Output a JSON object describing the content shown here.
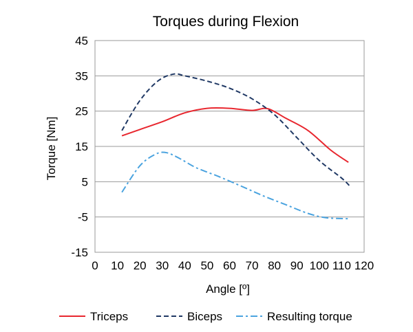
{
  "chart_data": {
    "type": "line",
    "title": "Torques during Flexion",
    "xlabel": "Angle [º]",
    "ylabel": "Torque [Nm]",
    "xlim": [
      0,
      120
    ],
    "ylim": [
      -15,
      45
    ],
    "x_ticks": [
      0,
      10,
      20,
      30,
      40,
      50,
      60,
      70,
      80,
      90,
      100,
      110,
      120
    ],
    "y_ticks": [
      45,
      35,
      25,
      15,
      5,
      -5,
      -15
    ],
    "grid": "horizontal",
    "legend_position": "bottom",
    "series": [
      {
        "name": "Triceps",
        "color": "#e8262e",
        "dash": "solid",
        "points": [
          [
            12,
            18
          ],
          [
            20,
            19.8
          ],
          [
            30,
            22
          ],
          [
            40,
            24.5
          ],
          [
            50,
            25.8
          ],
          [
            60,
            25.8
          ],
          [
            70,
            25.2
          ],
          [
            77,
            25.7
          ],
          [
            85,
            23
          ],
          [
            95,
            19.5
          ],
          [
            105,
            14
          ],
          [
            113,
            10.5
          ]
        ]
      },
      {
        "name": "Biceps",
        "color": "#1f3864",
        "dash": "dashed",
        "points": [
          [
            12,
            19.5
          ],
          [
            20,
            28
          ],
          [
            28,
            33.5
          ],
          [
            35,
            35.5
          ],
          [
            40,
            35
          ],
          [
            50,
            33.5
          ],
          [
            60,
            31.5
          ],
          [
            70,
            28.5
          ],
          [
            80,
            24
          ],
          [
            90,
            17.5
          ],
          [
            100,
            11
          ],
          [
            110,
            6
          ],
          [
            114,
            3.5
          ]
        ]
      },
      {
        "name": "Resulting torque",
        "color": "#4aa3df",
        "dash": "dashdot",
        "points": [
          [
            12,
            2
          ],
          [
            20,
            9.5
          ],
          [
            27,
            12.8
          ],
          [
            32,
            13.2
          ],
          [
            38,
            11.5
          ],
          [
            45,
            9
          ],
          [
            55,
            6.5
          ],
          [
            65,
            3.8
          ],
          [
            75,
            1
          ],
          [
            85,
            -1.5
          ],
          [
            95,
            -4
          ],
          [
            103,
            -5.2
          ],
          [
            113,
            -5.5
          ]
        ]
      }
    ]
  }
}
